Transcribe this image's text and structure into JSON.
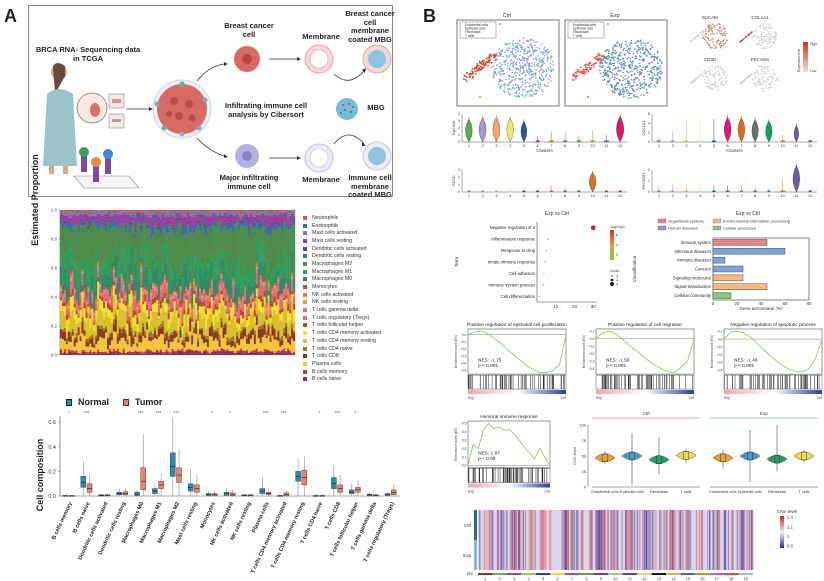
{
  "panels": {
    "a": "A",
    "b": "B"
  },
  "schematic": {
    "source": "BRCA RNA- Sequencing data in TCGA",
    "center": "Infiltrating immune cell analysis by Cibersort",
    "top_cell": "Breast cancer cell",
    "top_membrane": "Membrane",
    "top_product": "Breast cancer cell membrane coated MBG",
    "mbg": "MBG",
    "bottom_cell": "Major infiltrating immune cell",
    "bottom_membrane": "Membrane",
    "bottom_product": "Immune cell membrane coated MBG"
  },
  "colors": {
    "normal": "#2b8ca8",
    "tumor": "#e8826e",
    "cancer_cell": "#d9655f",
    "immune_cell": "#a9a4d8",
    "mbg": "#7ab8d8",
    "tsne_epi": "#6f9ad2",
    "tsne_fib": "#d9402f"
  },
  "chart_data": [
    {
      "id": "stacked-proportion",
      "type": "bar",
      "stacked": true,
      "title": "",
      "xlabel": "",
      "ylabel": "Estimated Proportion",
      "ylim": [
        0,
        1
      ],
      "yticks": [
        "0.0",
        "0.2",
        "0.4",
        "0.6",
        "0.8",
        "1.0"
      ],
      "legend_position": "right",
      "series": [
        {
          "name": "Neutrophils",
          "color": "#d2584a"
        },
        {
          "name": "Eosinophils",
          "color": "#2c7a7b"
        },
        {
          "name": "Mast cells activated",
          "color": "#8a6fa8"
        },
        {
          "name": "Mast cells resting",
          "color": "#9c3c9c"
        },
        {
          "name": "Dendritic cells activated",
          "color": "#5a4a6e"
        },
        {
          "name": "Dendritic cells resting",
          "color": "#3a6ab0"
        },
        {
          "name": "Macrophages M2",
          "color": "#4e8a4a"
        },
        {
          "name": "Macrophages M1",
          "color": "#2e9e5a"
        },
        {
          "name": "Macrophages M0",
          "color": "#2f8a66"
        },
        {
          "name": "Monocytes",
          "color": "#b84a52"
        },
        {
          "name": "NK cells activated",
          "color": "#e07a4a"
        },
        {
          "name": "NK cells resting",
          "color": "#eda040"
        },
        {
          "name": "T cells gamma delta",
          "color": "#e867a8"
        },
        {
          "name": "T cells regulatory (Tregs)",
          "color": "#e06a7a"
        },
        {
          "name": "T cells follicular helper",
          "color": "#c4462e"
        },
        {
          "name": "T cells CD4 memory activated",
          "color": "#f2e030"
        },
        {
          "name": "T cells CD4 memory resting",
          "color": "#d8c02c"
        },
        {
          "name": "T cells CD4 naive",
          "color": "#a0782a"
        },
        {
          "name": "T cells CD8",
          "color": "#8a3a1e"
        },
        {
          "name": "Plasma cells",
          "color": "#f2c53a"
        },
        {
          "name": "B cells memory",
          "color": "#c43a4a"
        },
        {
          "name": "B cells naive",
          "color": "#8e2e5a"
        }
      ]
    },
    {
      "id": "cell-composition-boxplot",
      "type": "bar",
      "title": "",
      "ylabel": "Cell composition",
      "ylim": [
        0,
        0.65
      ],
      "yticks": [
        "0.0",
        "0.2",
        "0.4",
        "0.6"
      ],
      "legend": [
        "Normal",
        "Tumor"
      ],
      "legend_position": "top-left",
      "categories": [
        "B cells memory",
        "B cells naive",
        "Dendritic cells activated",
        "Dendritic cells resting",
        "Macrophages M0",
        "Macrophages M1",
        "Macrophages M2",
        "Mast cells resting",
        "Monocytes",
        "NK cells activated",
        "NK cells resting",
        "Plasma cells",
        "T cells CD4 memory activated",
        "T cells CD4 memory resting",
        "T cells CD4 naive",
        "T cells CD8",
        "T cells follicular helper",
        "T cells gamma delta",
        "T cells regulatory (Tregs)"
      ],
      "significance": [
        "*",
        "***",
        "",
        "",
        "***",
        "***",
        "***",
        "",
        "*",
        "*",
        "",
        "***",
        "***",
        "",
        "*",
        "***",
        "*",
        "",
        ""
      ],
      "series": [
        {
          "name": "Normal",
          "median": [
            0.0,
            0.11,
            0.005,
            0.02,
            0.01,
            0.04,
            0.24,
            0.07,
            0.01,
            0.02,
            0.005,
            0.04,
            0.0,
            0.16,
            0.0,
            0.1,
            0.03,
            0.01,
            0.01
          ],
          "q1": [
            0.0,
            0.07,
            0.0,
            0.01,
            0.005,
            0.02,
            0.16,
            0.04,
            0.005,
            0.005,
            0.0,
            0.02,
            0.0,
            0.12,
            0.0,
            0.06,
            0.02,
            0.0,
            0.005
          ],
          "q3": [
            0.005,
            0.16,
            0.01,
            0.03,
            0.03,
            0.06,
            0.35,
            0.1,
            0.02,
            0.03,
            0.01,
            0.06,
            0.005,
            0.2,
            0.005,
            0.15,
            0.05,
            0.015,
            0.02
          ],
          "max": [
            0.005,
            0.28,
            0.02,
            0.06,
            0.05,
            0.1,
            0.64,
            0.22,
            0.04,
            0.07,
            0.02,
            0.15,
            0.01,
            0.3,
            0.01,
            0.25,
            0.1,
            0.03,
            0.03
          ]
        },
        {
          "name": "Tumor",
          "median": [
            0.0,
            0.06,
            0.005,
            0.02,
            0.12,
            0.09,
            0.17,
            0.06,
            0.01,
            0.01,
            0.005,
            0.02,
            0.01,
            0.15,
            0.0,
            0.06,
            0.05,
            0.005,
            0.03
          ],
          "q1": [
            0.0,
            0.03,
            0.0,
            0.01,
            0.05,
            0.06,
            0.11,
            0.03,
            0.005,
            0.005,
            0.0,
            0.01,
            0.0,
            0.09,
            0.0,
            0.03,
            0.03,
            0.0,
            0.01
          ],
          "q3": [
            0.005,
            0.1,
            0.01,
            0.035,
            0.23,
            0.12,
            0.23,
            0.09,
            0.02,
            0.025,
            0.01,
            0.03,
            0.025,
            0.21,
            0.005,
            0.09,
            0.07,
            0.01,
            0.05
          ],
          "max": [
            0.005,
            0.18,
            0.02,
            0.07,
            0.5,
            0.18,
            0.38,
            0.17,
            0.04,
            0.05,
            0.02,
            0.06,
            0.05,
            0.32,
            0.01,
            0.17,
            0.13,
            0.02,
            0.1
          ]
        }
      ]
    },
    {
      "id": "tsne",
      "type": "scatter",
      "panels": [
        "Ctrl",
        "Exp"
      ],
      "legend": [
        "Endothelial cells",
        "Epithelial cells",
        "Fibroblasts",
        "T cells"
      ]
    },
    {
      "id": "feature-plots",
      "type": "scatter",
      "genes": [
        "EpCAM",
        "COL1A1",
        "CD3D",
        "PECAM1"
      ],
      "colorbar_label": "Expression level",
      "colorbar_ticks": [
        "High",
        "Low"
      ]
    },
    {
      "id": "violin-plots",
      "type": "bar",
      "xlabel": "Clusters",
      "categories": [
        "1",
        "2",
        "3",
        "4",
        "5",
        "6",
        "7",
        "8",
        "9",
        "10",
        "11",
        "12"
      ],
      "colors": [
        "#5aab4e",
        "#a69ac8",
        "#f3a563",
        "#eee27a",
        "#2c5a8e",
        "#d81b6e",
        "#d86a2a",
        "#707070",
        "#1e9a5a",
        "#d8742a",
        "#6a5aa8",
        "#d81b6e"
      ],
      "plots": [
        {
          "gene": "EpCAM",
          "yticks": [
            "0",
            "1",
            "2",
            "3",
            "4"
          ],
          "values": [
            3.6,
            3.8,
            3.9,
            3.8,
            3.3,
            0.8,
            1.5,
            1.3,
            0.9,
            1.6,
            1.1,
            4.0
          ],
          "heights": [
            0.9,
            0.95,
            0.95,
            0.9,
            0.75,
            0.1,
            0.15,
            0.1,
            0.08,
            0.12,
            0.2,
            1.0
          ]
        },
        {
          "gene": "COL1A1",
          "yticks": [
            "0",
            "2",
            "4",
            "6"
          ],
          "values": [
            1.1,
            2.3,
            4.6,
            4.8,
            4.9,
            5.8,
            5.7,
            5.3,
            5.0,
            1.5,
            4.0,
            0.5
          ],
          "heights": [
            0.1,
            0.1,
            0.1,
            0.1,
            0.1,
            0.92,
            0.9,
            0.85,
            0.85,
            0.15,
            0.55,
            0.05
          ]
        },
        {
          "gene": "CD3D",
          "yticks": [
            "0",
            "1",
            "2",
            "3"
          ],
          "values": [
            0.2,
            0.2,
            0.2,
            0.2,
            0.2,
            0.2,
            0.9,
            0.6,
            0.2,
            3.0,
            0.2,
            0.2
          ],
          "heights": [
            0.02,
            0.02,
            0.02,
            0.02,
            0.02,
            0.02,
            0.05,
            0.04,
            0.02,
            0.9,
            0.02,
            0.02
          ]
        },
        {
          "gene": "PECAM1",
          "yticks": [
            "0",
            "1",
            "2"
          ],
          "values": [
            0.5,
            0.7,
            0.7,
            0.8,
            0.6,
            0.6,
            0.6,
            0.4,
            0.3,
            1.2,
            2.6,
            0.2
          ],
          "heights": [
            0.03,
            0.03,
            0.03,
            0.04,
            0.03,
            0.03,
            0.03,
            0.03,
            0.02,
            0.2,
            0.9,
            0.02
          ]
        }
      ]
    },
    {
      "id": "go-dotplot",
      "type": "scatter",
      "title": "Exp vs Ctrl",
      "xlabel": "Enrichment score",
      "ylabel": "Term",
      "xticks": [
        "10",
        "20",
        "30"
      ],
      "xlim": [
        0,
        32
      ],
      "categories": [
        "Negative regulation of angiogenesis",
        "Inflammatory response",
        "Response to drug",
        "Innate immune response",
        "Cell adhesion",
        "Immune system process",
        "Cell differentiation"
      ],
      "values": [
        30,
        6,
        5,
        4,
        3.8,
        3.5,
        1.2
      ],
      "neglog10p": [
        7,
        3,
        1.5,
        2.8,
        2.6,
        1.6,
        1.2
      ],
      "counts": [
        5,
        3,
        3,
        3,
        3,
        3,
        3
      ],
      "colorbar_label": "-log10(pval)",
      "colorbar_ticks": [
        "6",
        "4",
        "2"
      ],
      "size_legend_title": "Count",
      "size_legend": [
        "3",
        "4",
        "5"
      ]
    },
    {
      "id": "kegg-bar",
      "type": "bar",
      "orientation": "horizontal",
      "title": "Exp vs Ctrl",
      "xlabel": "Gene percentage (%)",
      "ylabel": "Classification",
      "xlim": [
        0,
        80
      ],
      "xticks": [
        "0",
        "20",
        "40",
        "60",
        "80"
      ],
      "legend": [
        {
          "name": "Organismal systems",
          "color": "#e8828e"
        },
        {
          "name": "Environmental information processing",
          "color": "#f4b880"
        },
        {
          "name": "Human diseases",
          "color": "#7ca4d8"
        },
        {
          "name": "Cellular processes",
          "color": "#88c87a"
        }
      ],
      "categories": [
        "Immune system",
        "Infectious diseases",
        "Immune diseases",
        "Cancers",
        "Signaling molecules and interaction",
        "Signal transduction",
        "Cellular community"
      ],
      "values": [
        45,
        60,
        10,
        25,
        25,
        45,
        15
      ],
      "groups": [
        "Organismal systems",
        "Human diseases",
        "Human diseases",
        "Human diseases",
        "Environmental information processing",
        "Environmental information processing",
        "Cellular processes"
      ]
    },
    {
      "id": "gsea",
      "type": "line",
      "ylabel": "Enrichment score (ES)",
      "left_label": "Exp",
      "right_label": "Ctrl",
      "plots": [
        {
          "title": "Positive regulation of epithelial cell proliferation",
          "nes": "NES: -1.75",
          "p": "p < 0.001",
          "yticks": [
            "0.0",
            "-0.1",
            "-0.2",
            "-0.3",
            "-0.4",
            "-0.5"
          ],
          "ylim": [
            -0.55,
            0.08
          ],
          "curve": [
            0,
            0.04,
            0.05,
            0.02,
            -0.05,
            -0.12,
            -0.2,
            -0.28,
            -0.36,
            -0.43,
            -0.49,
            -0.53,
            -0.53,
            -0.5,
            -0.42,
            0
          ]
        },
        {
          "title": "Positive regulation of cell migration",
          "nes": "NES: -1.59",
          "p": "p < 0.001",
          "yticks": [
            "0.1",
            "0.0",
            "-0.1",
            "-0.2",
            "-0.3",
            "-0.4"
          ],
          "ylim": [
            -0.47,
            0.13
          ],
          "curve": [
            0,
            0.08,
            0.1,
            0.07,
            0.0,
            -0.08,
            -0.15,
            -0.22,
            -0.29,
            -0.35,
            -0.4,
            -0.44,
            -0.45,
            -0.38,
            -0.3,
            0
          ]
        },
        {
          "title": "Negative regulation of apoptotic process",
          "nes": "NES: -1.46",
          "p": "p < 0.001",
          "yticks": [
            "0.1",
            "0.0",
            "-0.1",
            "-0.2",
            "-0.3",
            "-0.4"
          ],
          "ylim": [
            -0.45,
            0.13
          ],
          "curve": [
            0,
            0.09,
            0.1,
            0.08,
            0.03,
            -0.05,
            -0.13,
            -0.21,
            -0.28,
            -0.34,
            -0.39,
            -0.42,
            -0.42,
            -0.38,
            -0.25,
            0
          ]
        },
        {
          "title": "Humoral immune response",
          "nes": "NES: 1.87",
          "p": "p < 0.05",
          "yticks": [
            "0.5",
            "0.4",
            "0.3",
            "0.2",
            "0.1",
            "0.0"
          ],
          "ylim": [
            -0.02,
            0.53
          ],
          "curve": [
            0,
            0.25,
            0.2,
            0.42,
            0.5,
            0.44,
            0.46,
            0.42,
            0.43,
            0.38,
            0.3,
            0.22,
            0.15,
            0.08,
            0.2,
            0.1,
            0.0
          ]
        }
      ]
    },
    {
      "id": "cnv-violin",
      "type": "bar",
      "ylabel": "CNV level",
      "ylim": [
        0,
        100
      ],
      "yticks": [
        "0",
        "25",
        "50",
        "75",
        "100"
      ],
      "groups": [
        {
          "name": "Ctrl",
          "color": "#e8828e"
        },
        {
          "name": "Exp",
          "color": "#7ca4d8"
        }
      ],
      "categories": [
        "Endothelial cells",
        "Epithelial cells",
        "Fibroblasts",
        "T cells"
      ],
      "colors": [
        "#e8a030",
        "#4a96c8",
        "#2a9a6a",
        "#ecd850"
      ],
      "series": [
        {
          "name": "Ctrl",
          "median": [
            47,
            50,
            44,
            51
          ],
          "min": [
            38,
            2,
            20,
            38
          ],
          "max": [
            58,
            86,
            80,
            62
          ]
        },
        {
          "name": "Exp",
          "median": [
            47,
            50,
            45,
            50
          ],
          "min": [
            30,
            8,
            25,
            40
          ],
          "max": [
            60,
            92,
            100,
            60
          ]
        }
      ]
    },
    {
      "id": "cnv-heatmap",
      "type": "heatmap",
      "rows": [
        "Ctrl",
        "Exp"
      ],
      "x_label": "chr",
      "chromosomes": [
        "1",
        "2",
        "3",
        "4",
        "5",
        "6",
        "7",
        "8",
        "9",
        "10",
        "11",
        "12",
        "13",
        "14",
        "15",
        "16",
        "17",
        "18",
        "19"
      ],
      "chromosome_colors": [
        "#a0282a",
        "#6ab04a",
        "#8a4aa0",
        "#a8c84a",
        "#3a3a9a",
        "#e0e040",
        "#a04aa0",
        "#6aa04a",
        "#7a3aa0",
        "#9ac89a",
        "#6a3aa0",
        "#d0e080",
        "#1a1a2a",
        "#e0b040",
        "#3a6ab0",
        "#e08a30",
        "#b06ab0",
        "#e04a30",
        "#8ac8c8"
      ],
      "colorbar_label": "CNV level",
      "colorbar_ticks": [
        "1.4",
        "1.2",
        "1",
        "0.8"
      ]
    }
  ]
}
